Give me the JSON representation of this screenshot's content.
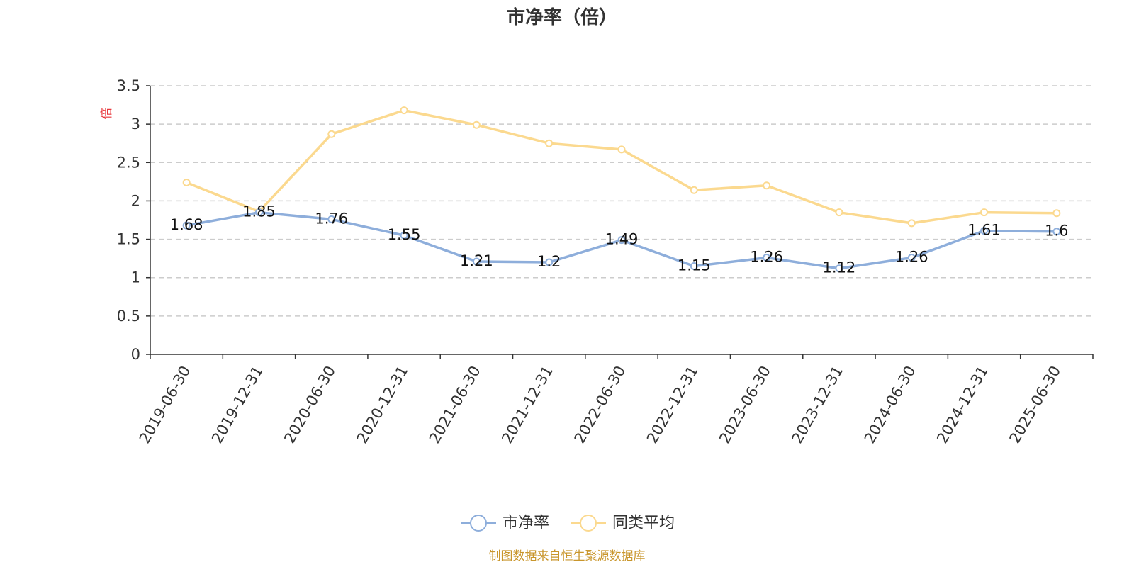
{
  "chart_data": {
    "type": "line",
    "title": "市净率（倍）",
    "ylabel": "倍",
    "xlabel": "",
    "ylim": [
      0,
      3.5
    ],
    "yticks": [
      "0",
      "0.5",
      "1",
      "1.5",
      "2",
      "2.5",
      "3",
      "3.5"
    ],
    "grid": true,
    "legend_position": "bottom",
    "categories": [
      "2019-06-30",
      "2019-12-31",
      "2020-06-30",
      "2020-12-31",
      "2021-06-30",
      "2021-12-31",
      "2022-06-30",
      "2022-12-31",
      "2023-06-30",
      "2023-12-31",
      "2024-06-30",
      "2024-12-31",
      "2025-06-30"
    ],
    "series": [
      {
        "name": "市净率",
        "color": "#8eaedb",
        "show_labels": true,
        "values": [
          1.68,
          1.85,
          1.76,
          1.55,
          1.21,
          1.2,
          1.49,
          1.15,
          1.26,
          1.12,
          1.26,
          1.61,
          1.6
        ]
      },
      {
        "name": "同类平均",
        "color": "#fbd98f",
        "show_labels": false,
        "values": [
          2.24,
          1.86,
          2.87,
          3.18,
          2.99,
          2.75,
          2.67,
          2.14,
          2.2,
          1.85,
          1.71,
          1.85,
          1.84
        ]
      }
    ],
    "source": "制图数据来自恒生聚源数据库"
  }
}
